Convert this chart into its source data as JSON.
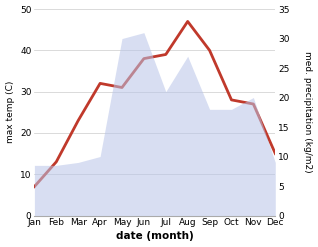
{
  "months": [
    "Jan",
    "Feb",
    "Mar",
    "Apr",
    "May",
    "Jun",
    "Jul",
    "Aug",
    "Sep",
    "Oct",
    "Nov",
    "Dec"
  ],
  "temperature": [
    7,
    13,
    23,
    32,
    31,
    38,
    39,
    47,
    40,
    28,
    27,
    15
  ],
  "precipitation": [
    8.5,
    8.5,
    9,
    10,
    30,
    31,
    21,
    27,
    18,
    18,
    20,
    9
  ],
  "temp_color": "#c0392b",
  "precip_fill_color": "#b8c4e8",
  "temp_ylim": [
    0,
    50
  ],
  "precip_ylim": [
    0,
    35
  ],
  "temp_yticks": [
    0,
    10,
    20,
    30,
    40,
    50
  ],
  "precip_yticks": [
    0,
    5,
    10,
    15,
    20,
    25,
    30,
    35
  ],
  "ylabel_left": "max temp (C)",
  "ylabel_right": "med. precipitation (kg/m2)",
  "xlabel": "date (month)",
  "line_width": 2.0,
  "fill_alpha": 0.55,
  "bg_color": "#ffffff"
}
